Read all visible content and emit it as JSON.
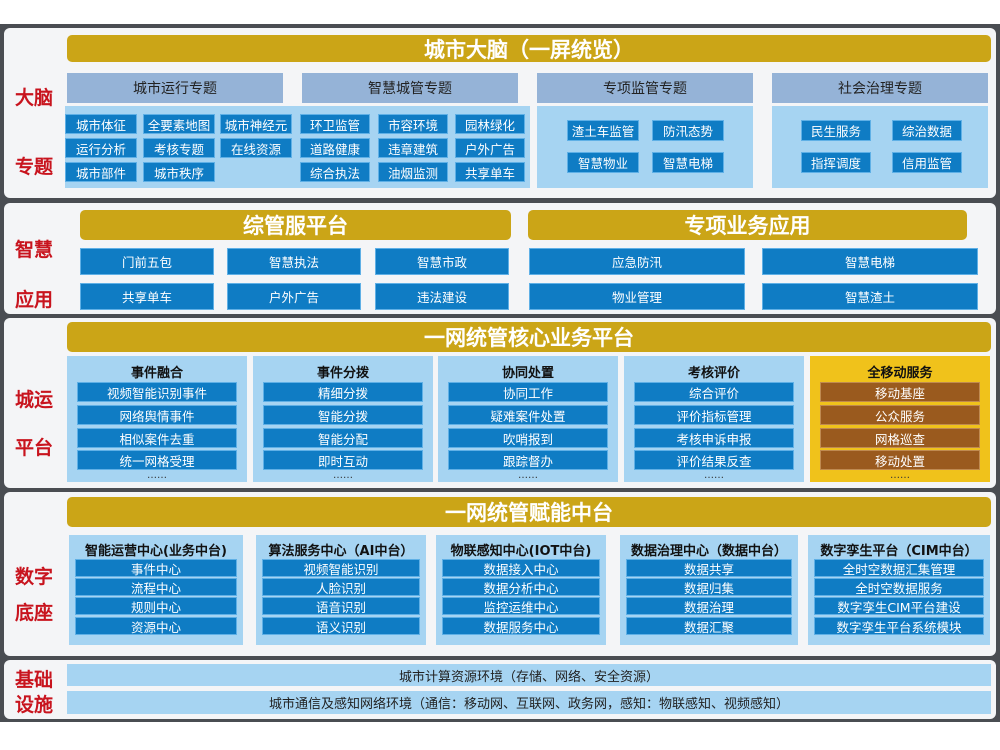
{
  "colors": {
    "title_bar": "#cba517",
    "item_blue": "#0f7cc4",
    "category_header": "#95b3d7",
    "light_blue": "#a6d4f2",
    "side_label": "#c8141e",
    "mobile_bg": "#f0c21b",
    "mobile_item": "#9a5a1e"
  },
  "brain": {
    "side": [
      "大脑",
      "专题"
    ],
    "title": "城市大脑（一屏统览）",
    "categories": [
      {
        "name": "城市运行专题",
        "items": [
          "城市体征",
          "全要素地图",
          "城市神经元",
          "运行分析",
          "考核专题",
          "在线资源",
          "城市部件",
          "城市秩序"
        ]
      },
      {
        "name": "智慧城管专题",
        "items": [
          "环卫监管",
          "市容环境",
          "园林绿化",
          "道路健康",
          "违章建筑",
          "户外广告",
          "综合执法",
          "油烟监测",
          "共享单车"
        ]
      },
      {
        "name": "专项监管专题",
        "items": [
          "渣土车监管",
          "防汛态势",
          "智慧物业",
          "智慧电梯"
        ]
      },
      {
        "name": "社会治理专题",
        "items": [
          "民生服务",
          "综治数据",
          "指挥调度",
          "信用监管"
        ]
      }
    ]
  },
  "apps": {
    "side": [
      "智慧",
      "应用"
    ],
    "left": {
      "title": "综管服平台",
      "items": [
        "门前五包",
        "智慧执法",
        "智慧市政",
        "共享单车",
        "户外广告",
        "违法建设"
      ]
    },
    "right": {
      "title": "专项业务应用",
      "items": [
        "应急防汛",
        "智慧电梯",
        "物业管理",
        "智慧渣土"
      ]
    }
  },
  "platform": {
    "side": [
      "城运",
      "平台"
    ],
    "title": "一网统管核心业务平台",
    "ellipsis": "……",
    "columns": [
      {
        "name": "事件融合",
        "items": [
          "视频智能识别事件",
          "网络舆情事件",
          "相似案件去重",
          "统一网格受理"
        ]
      },
      {
        "name": "事件分拨",
        "items": [
          "精细分拨",
          "智能分拨",
          "智能分配",
          "即时互动"
        ]
      },
      {
        "name": "协同处置",
        "items": [
          "协同工作",
          "疑难案件处置",
          "吹哨报到",
          "跟踪督办"
        ]
      },
      {
        "name": "考核评价",
        "items": [
          "综合评价",
          "评价指标管理",
          "考核申诉申报",
          "评价结果反查"
        ]
      },
      {
        "name": "全移动服务",
        "items": [
          "移动基座",
          "公众服务",
          "网格巡查",
          "移动处置"
        ]
      }
    ]
  },
  "base": {
    "side": [
      "数字",
      "底座"
    ],
    "title": "一网统管赋能中台",
    "columns": [
      {
        "name": "智能运营中心(业务中台)",
        "items": [
          "事件中心",
          "流程中心",
          "规则中心",
          "资源中心"
        ]
      },
      {
        "name": "算法服务中心（AI中台）",
        "items": [
          "视频智能识别",
          "人脸识别",
          "语音识别",
          "语义识别"
        ]
      },
      {
        "name": "物联感知中心(IOT中台)",
        "items": [
          "数据接入中心",
          "数据分析中心",
          "监控运维中心",
          "数据服务中心"
        ]
      },
      {
        "name": "数据治理中心（数据中台）",
        "items": [
          "数据共享",
          "数据归集",
          "数据治理",
          "数据汇聚"
        ]
      },
      {
        "name": "数字孪生平台（CIM中台）",
        "items": [
          "全时空数据汇集管理",
          "全时空数据服务",
          "数字孪生CIM平台建设",
          "数字孪生平台系统模块"
        ]
      }
    ]
  },
  "infra": {
    "side": [
      "基础",
      "设施"
    ],
    "rows": [
      "城市计算资源环境（存储、网络、安全资源）",
      "城市通信及感知网络环境（通信：移动网、互联网、政务网，感知：物联感知、视频感知）"
    ]
  }
}
